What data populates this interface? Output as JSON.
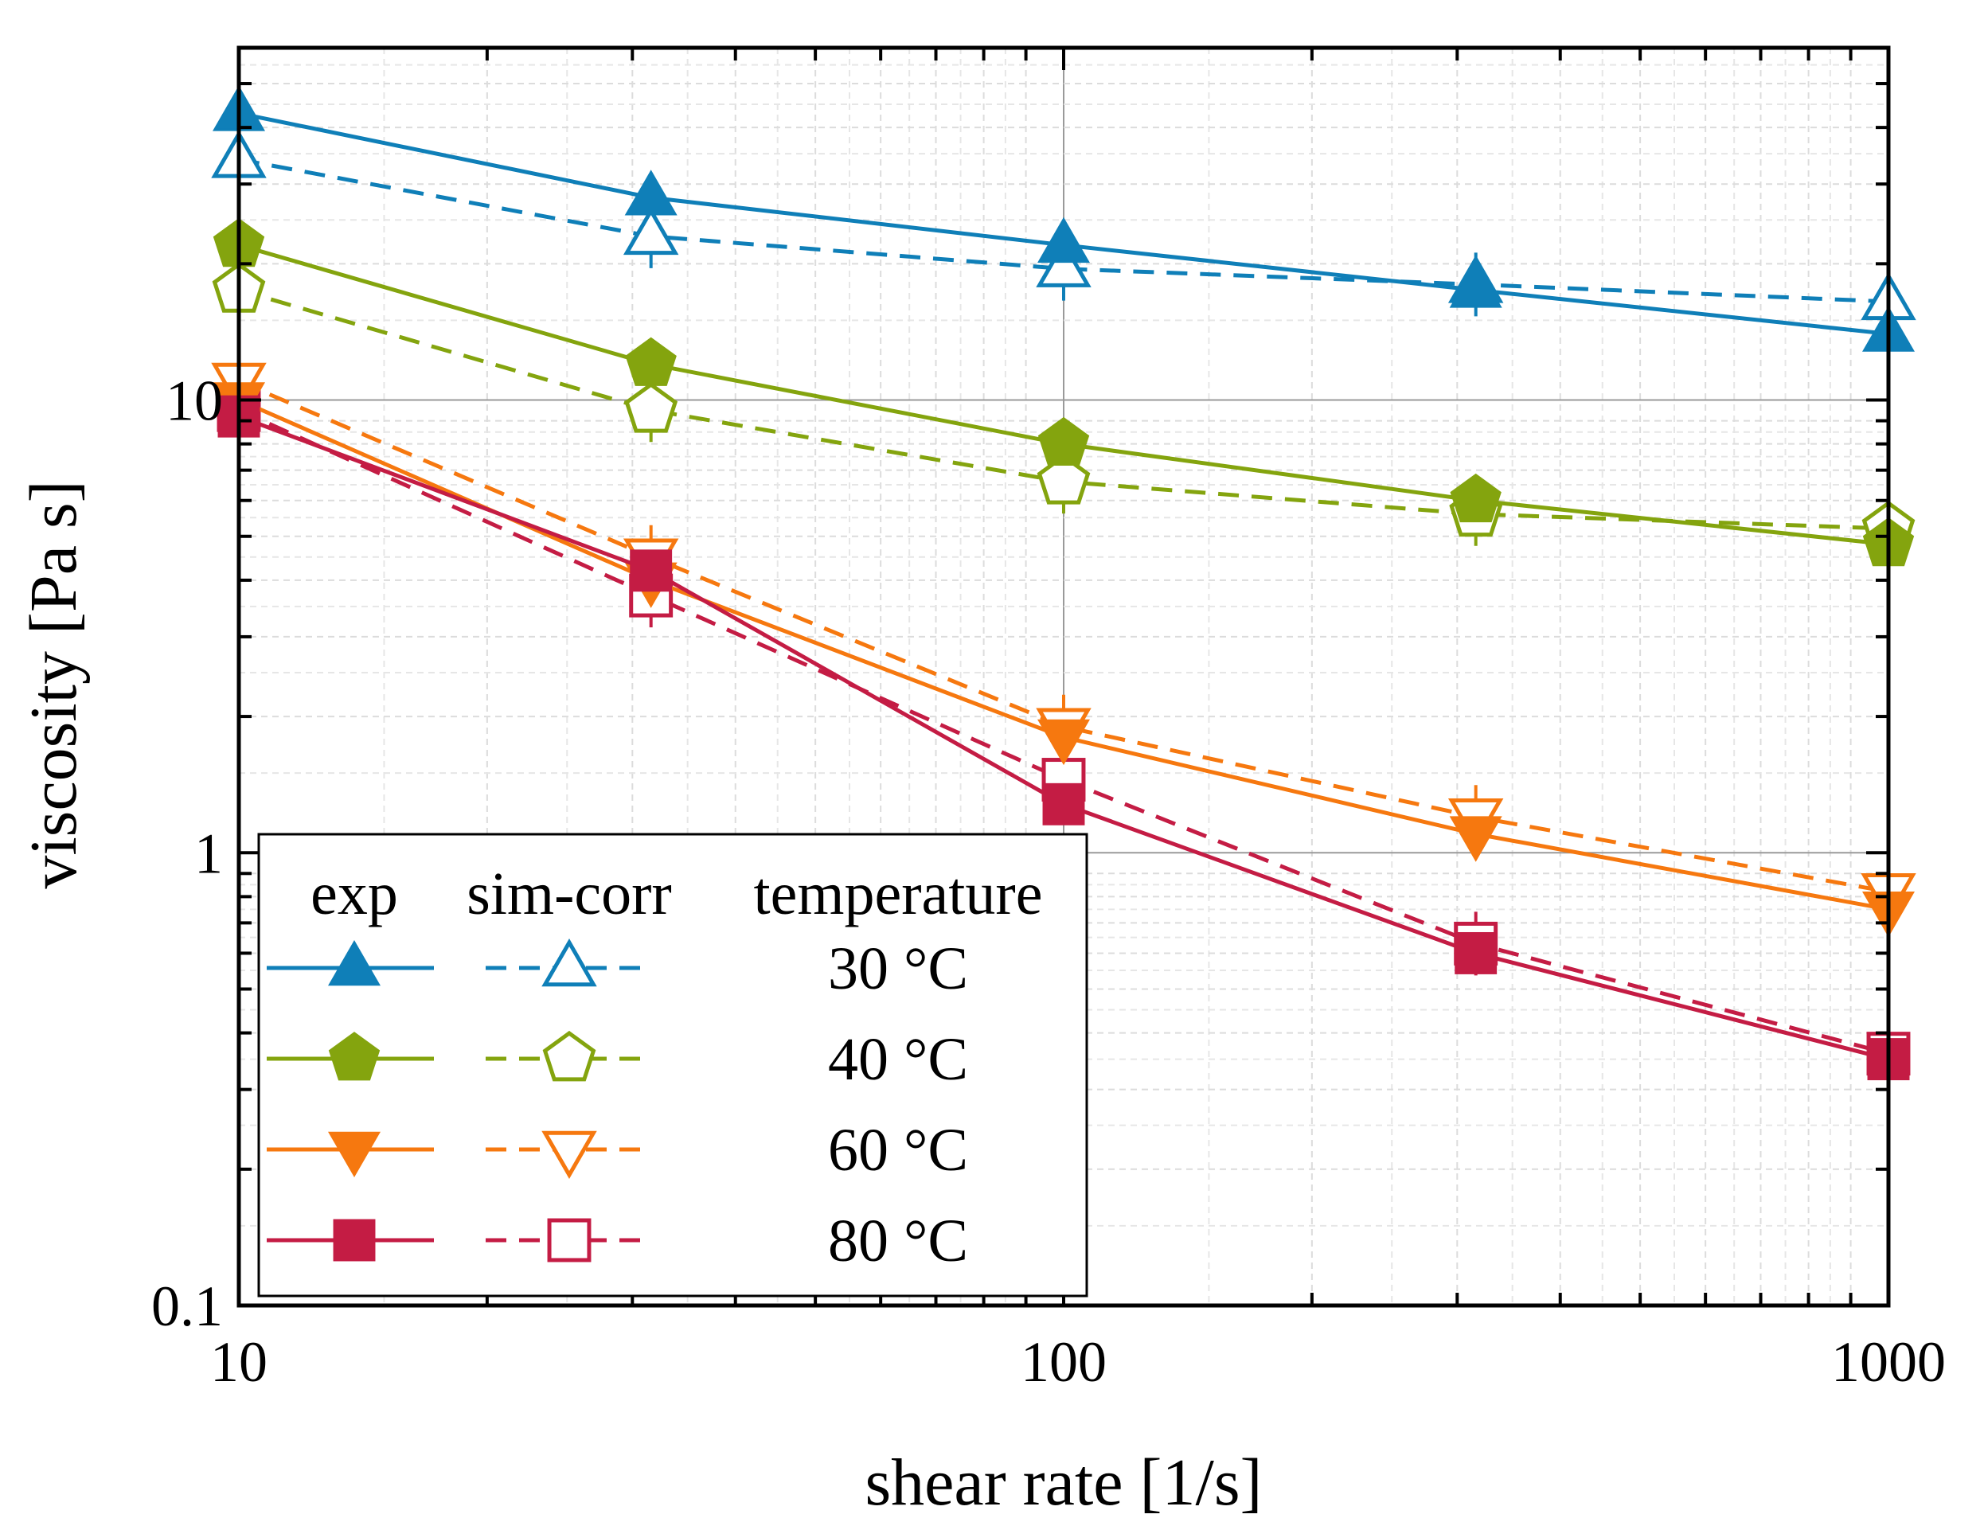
{
  "chart_data": {
    "type": "line",
    "xlabel": "shear rate [1/s]",
    "ylabel": "viscosity [Pa s]",
    "x_scale": "log",
    "y_scale": "log",
    "xlim": [
      10,
      1000
    ],
    "ylim": [
      0.1,
      60
    ],
    "x_ticks": [
      {
        "value": 10,
        "label": "10"
      },
      {
        "value": 100,
        "label": "100"
      },
      {
        "value": 1000,
        "label": "1000"
      }
    ],
    "y_ticks": [
      {
        "value": 0.1,
        "label": "0.1"
      },
      {
        "value": 1,
        "label": "1"
      },
      {
        "value": 10,
        "label": "10"
      }
    ],
    "grid": true,
    "legend": {
      "placement": "bottom-left",
      "header_exp": "exp",
      "header_sim": "sim-corr",
      "header_temp": "temperature"
    },
    "series": [
      {
        "name": "30 °C",
        "kind": "exp",
        "temperature": "30 °C",
        "color": "#0f7fb8",
        "marker": "triangle-up",
        "filled": true,
        "dashed": false,
        "x": [
          10,
          31.6,
          100,
          316,
          1000
        ],
        "y": [
          43,
          28,
          22,
          17.5,
          14
        ]
      },
      {
        "name": "30 °C",
        "kind": "sim-corr",
        "temperature": "30 °C",
        "color": "#0f7fb8",
        "marker": "triangle-up",
        "filled": false,
        "dashed": true,
        "x": [
          10,
          31.6,
          100,
          316,
          1000
        ],
        "y": [
          34,
          23,
          19.5,
          18,
          16.5
        ]
      },
      {
        "name": "40 °C",
        "kind": "exp",
        "temperature": "40 °C",
        "color": "#84a40e",
        "marker": "pentagon",
        "filled": true,
        "dashed": false,
        "x": [
          10,
          31.6,
          100,
          316,
          1000
        ],
        "y": [
          22,
          12,
          8,
          6,
          4.8
        ]
      },
      {
        "name": "40 °C",
        "kind": "sim-corr",
        "temperature": "40 °C",
        "color": "#84a40e",
        "marker": "pentagon",
        "filled": false,
        "dashed": true,
        "x": [
          10,
          31.6,
          100,
          316,
          1000
        ],
        "y": [
          17.5,
          9.5,
          6.6,
          5.6,
          5.2
        ]
      },
      {
        "name": "60 °C",
        "kind": "exp",
        "temperature": "60 °C",
        "color": "#f6780f",
        "marker": "triangle-down",
        "filled": true,
        "dashed": false,
        "x": [
          10,
          31.6,
          100,
          316,
          1000
        ],
        "y": [
          10,
          4,
          1.8,
          1.1,
          0.75
        ]
      },
      {
        "name": "60 °C",
        "kind": "sim-corr",
        "temperature": "60 °C",
        "color": "#f6780f",
        "marker": "triangle-down",
        "filled": false,
        "dashed": true,
        "x": [
          10,
          31.6,
          100,
          316,
          1000
        ],
        "y": [
          11,
          4.5,
          1.9,
          1.2,
          0.82
        ]
      },
      {
        "name": "80 °C",
        "kind": "exp",
        "temperature": "80 °C",
        "color": "#c41c44",
        "marker": "square",
        "filled": true,
        "dashed": false,
        "x": [
          10,
          31.6,
          100,
          316,
          1000
        ],
        "y": [
          9.2,
          4.2,
          1.28,
          0.6,
          0.35
        ]
      },
      {
        "name": "80 °C",
        "kind": "sim-corr",
        "temperature": "80 °C",
        "color": "#c41c44",
        "marker": "square",
        "filled": false,
        "dashed": true,
        "x": [
          10,
          31.6,
          100,
          316,
          1000
        ],
        "y": [
          9.5,
          3.7,
          1.45,
          0.63,
          0.36
        ]
      }
    ]
  }
}
